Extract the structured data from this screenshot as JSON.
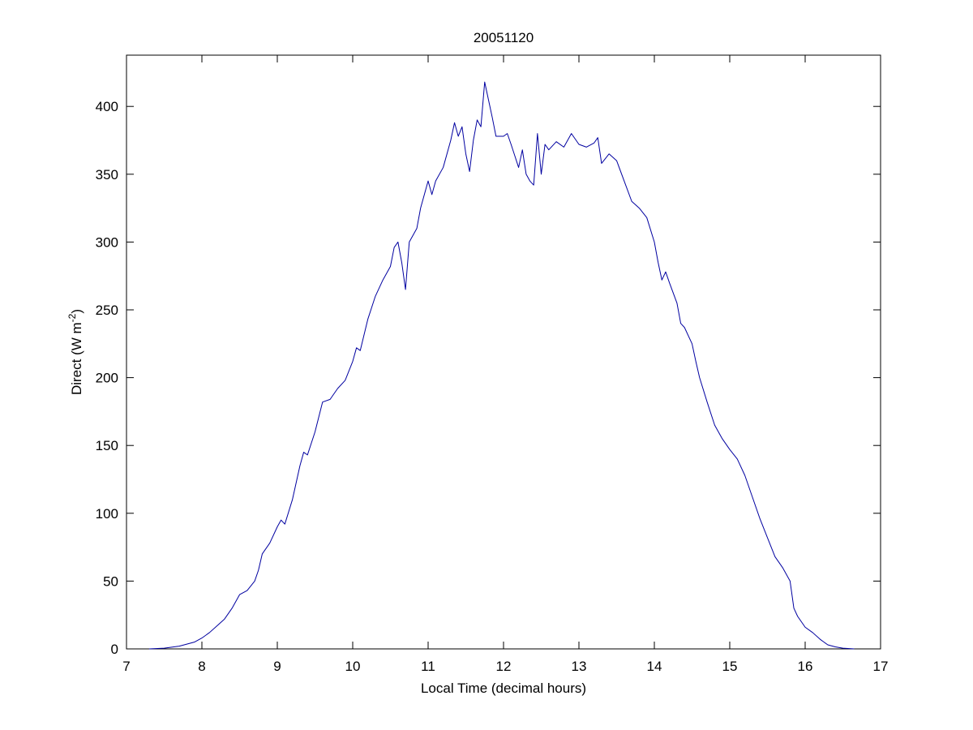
{
  "chart_data": {
    "type": "line",
    "title": "20051120",
    "xlabel": "Local Time (decimal hours)",
    "ylabel": [
      "Direct (W m",
      "-2",
      ")"
    ],
    "color": "#0000a0",
    "x": [
      7.3,
      7.5,
      7.7,
      7.9,
      8.0,
      8.1,
      8.2,
      8.3,
      8.4,
      8.5,
      8.6,
      8.7,
      8.75,
      8.8,
      8.9,
      9.0,
      9.05,
      9.1,
      9.2,
      9.3,
      9.35,
      9.4,
      9.5,
      9.6,
      9.7,
      9.8,
      9.9,
      10.0,
      10.05,
      10.1,
      10.2,
      10.3,
      10.4,
      10.5,
      10.55,
      10.6,
      10.65,
      10.7,
      10.75,
      10.8,
      10.85,
      10.9,
      11.0,
      11.05,
      11.1,
      11.2,
      11.3,
      11.35,
      11.4,
      11.45,
      11.5,
      11.55,
      11.6,
      11.65,
      11.7,
      11.75,
      11.8,
      11.85,
      11.9,
      12.0,
      12.05,
      12.1,
      12.2,
      12.25,
      12.3,
      12.35,
      12.4,
      12.45,
      12.5,
      12.55,
      12.6,
      12.7,
      12.8,
      12.9,
      13.0,
      13.1,
      13.2,
      13.25,
      13.3,
      13.4,
      13.5,
      13.6,
      13.7,
      13.8,
      13.9,
      14.0,
      14.05,
      14.1,
      14.15,
      14.2,
      14.3,
      14.35,
      14.4,
      14.5,
      14.55,
      14.6,
      14.7,
      14.8,
      14.85,
      14.9,
      15.0,
      15.1,
      15.2,
      15.3,
      15.4,
      15.5,
      15.6,
      15.7,
      15.8,
      15.85,
      15.9,
      16.0,
      16.1,
      16.2,
      16.3,
      16.4,
      16.5,
      16.65
    ],
    "values": [
      0,
      0.5,
      2,
      5,
      8,
      12,
      17,
      22,
      30,
      40,
      43,
      50,
      58,
      70,
      78,
      90,
      95,
      92,
      110,
      135,
      145,
      143,
      160,
      182,
      184,
      192,
      198,
      212,
      222,
      220,
      243,
      260,
      272,
      282,
      296,
      300,
      285,
      265,
      300,
      305,
      310,
      325,
      345,
      335,
      345,
      355,
      375,
      388,
      378,
      385,
      365,
      352,
      375,
      390,
      385,
      418,
      405,
      392,
      378,
      378,
      380,
      372,
      355,
      368,
      350,
      345,
      342,
      380,
      350,
      372,
      368,
      374,
      370,
      380,
      372,
      370,
      373,
      377,
      358,
      365,
      360,
      345,
      330,
      325,
      318,
      300,
      285,
      272,
      278,
      270,
      255,
      240,
      237,
      225,
      212,
      200,
      182,
      165,
      160,
      155,
      147,
      140,
      128,
      112,
      96,
      82,
      68,
      60,
      50,
      30,
      24,
      16,
      12,
      7,
      3,
      1.5,
      0.5,
      0
    ],
    "xlim": [
      7,
      17
    ],
    "xticks": [
      7,
      8,
      9,
      10,
      11,
      12,
      13,
      14,
      15,
      16,
      17
    ],
    "ylim": [
      0,
      437.8
    ],
    "yticks": [
      0,
      50,
      100,
      150,
      200,
      250,
      300,
      350,
      400
    ]
  }
}
